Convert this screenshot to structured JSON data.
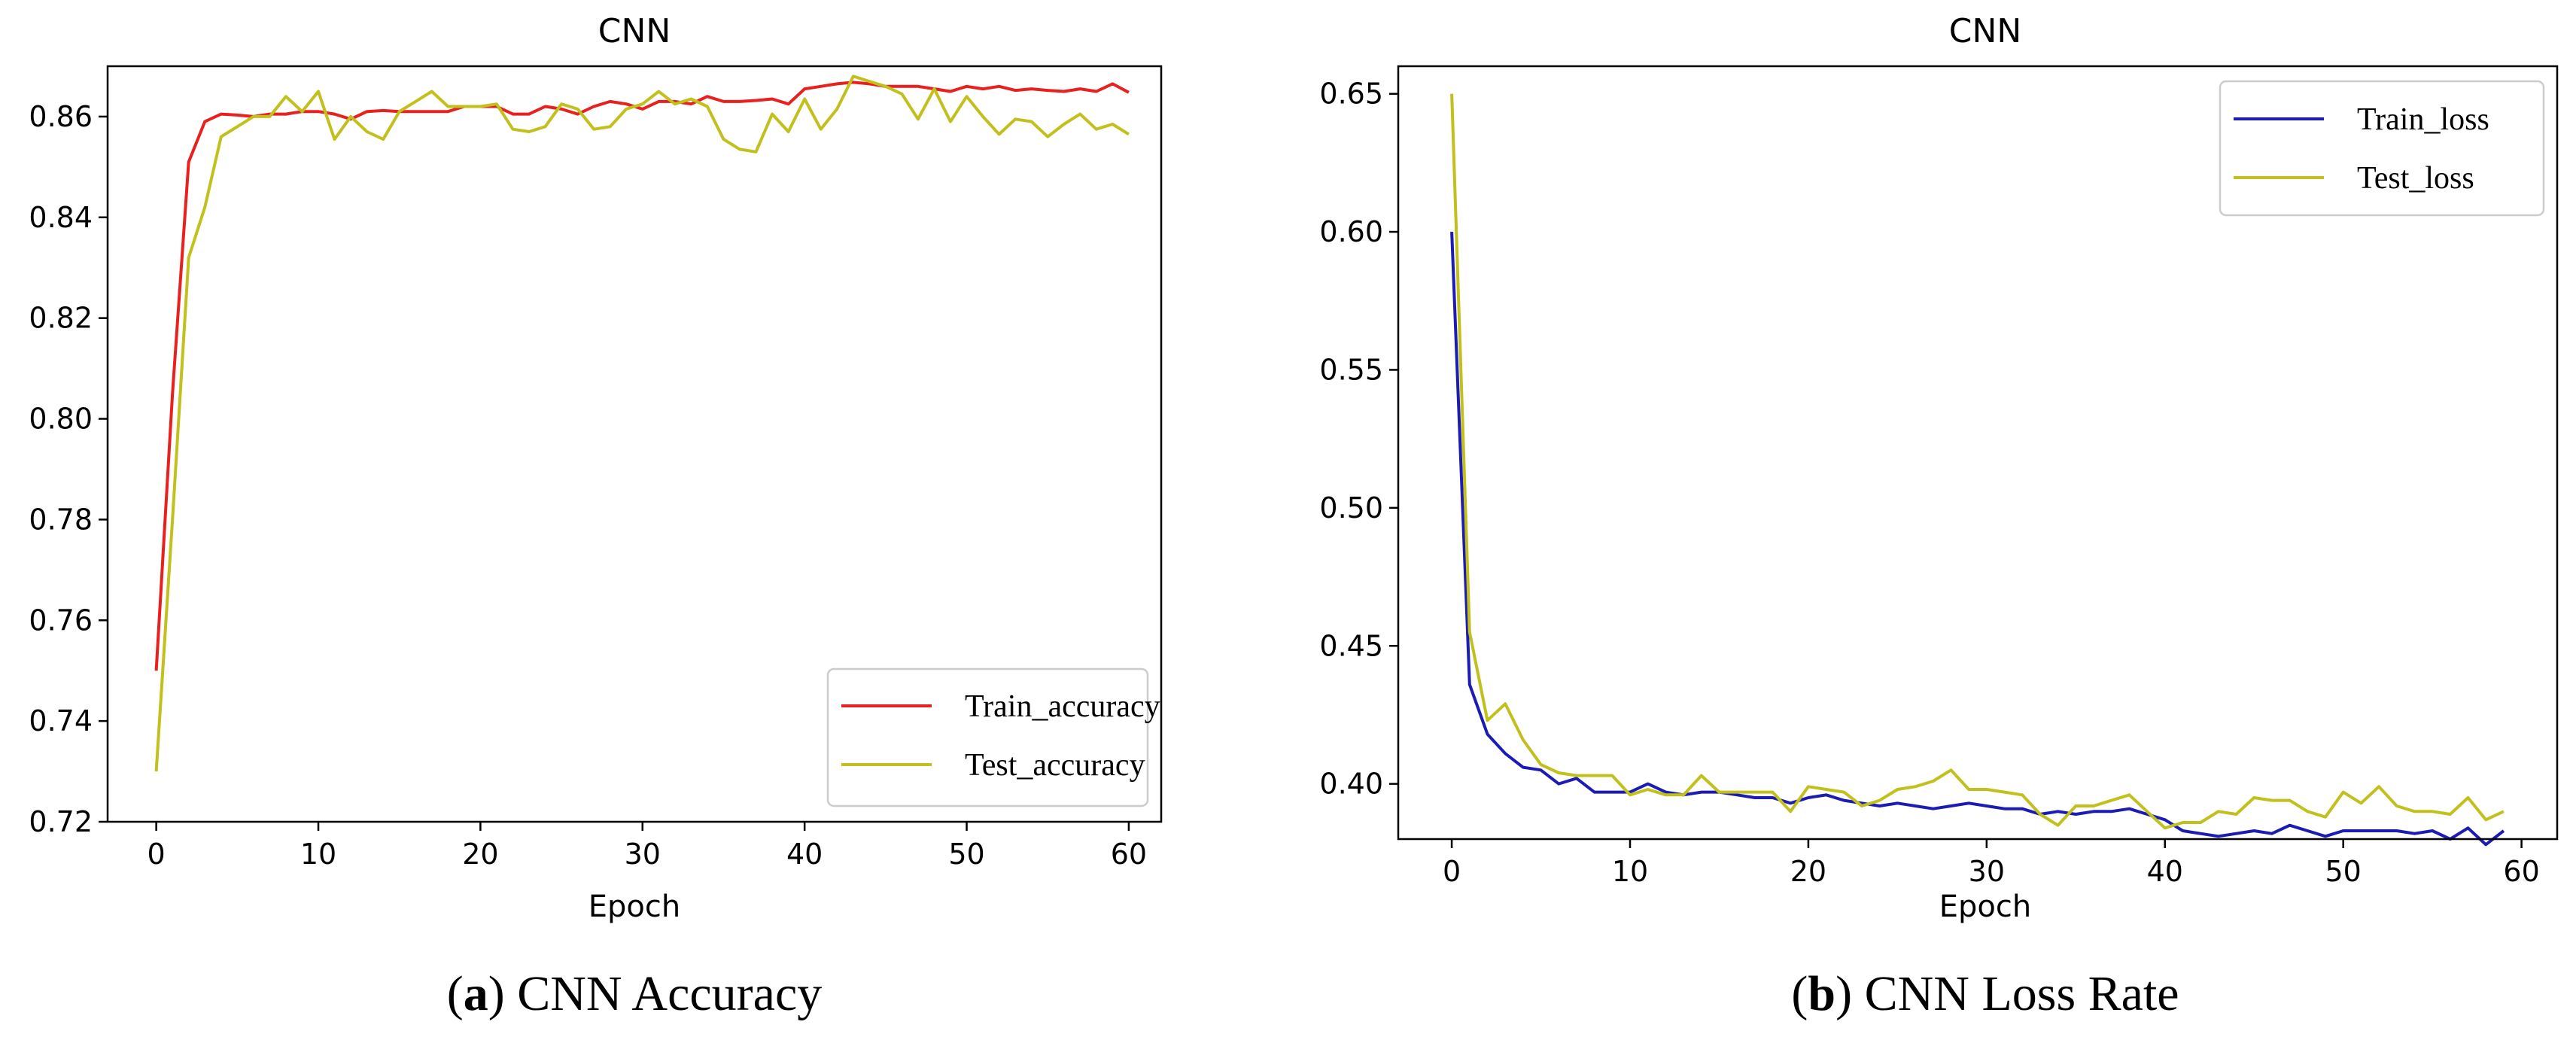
{
  "captions": {
    "a": {
      "letter": "a",
      "text": " CNN Accuracy"
    },
    "b": {
      "letter": "b",
      "text": " CNN Loss Rate"
    }
  },
  "chart_data": [
    {
      "type": "line",
      "title": "CNN",
      "xlabel": "Epoch",
      "ylabel": "",
      "xlim": [
        -3,
        62
      ],
      "ylim": [
        0.72,
        0.87
      ],
      "xticks": [
        0,
        10,
        20,
        30,
        40,
        50,
        60
      ],
      "yticks": [
        0.72,
        0.74,
        0.76,
        0.78,
        0.8,
        0.82,
        0.84,
        0.86
      ],
      "ytick_labels": [
        "0.72",
        "0.74",
        "0.76",
        "0.78",
        "0.80",
        "0.82",
        "0.84",
        "0.86"
      ],
      "legend_position": "lower-right",
      "grid": false,
      "series": [
        {
          "name": "Train_accuracy",
          "color": "#e8201e",
          "x": [
            0,
            1,
            2,
            3,
            4,
            5,
            6,
            7,
            8,
            9,
            10,
            11,
            12,
            13,
            14,
            15,
            16,
            17,
            18,
            19,
            20,
            21,
            22,
            23,
            24,
            25,
            26,
            27,
            28,
            29,
            30,
            31,
            32,
            33,
            34,
            35,
            36,
            37,
            38,
            39,
            40,
            41,
            42,
            43,
            44,
            45,
            46,
            47,
            48,
            49,
            50,
            51,
            52,
            53,
            54,
            55,
            56,
            57,
            58,
            59,
            60
          ],
          "values": [
            0.75,
            0.805,
            0.851,
            0.859,
            0.8605,
            0.8603,
            0.86,
            0.8605,
            0.8605,
            0.861,
            0.861,
            0.8605,
            0.8595,
            0.861,
            0.8612,
            0.861,
            0.861,
            0.861,
            0.861,
            0.862,
            0.862,
            0.862,
            0.8605,
            0.8605,
            0.862,
            0.8615,
            0.8605,
            0.862,
            0.863,
            0.8625,
            0.8615,
            0.863,
            0.863,
            0.8625,
            0.864,
            0.863,
            0.863,
            0.8632,
            0.8635,
            0.8625,
            0.8655,
            0.866,
            0.8665,
            0.8668,
            0.8665,
            0.866,
            0.866,
            0.866,
            0.8655,
            0.865,
            0.866,
            0.8655,
            0.866,
            0.8652,
            0.8655,
            0.8652,
            0.865,
            0.8655,
            0.865,
            0.8665,
            0.8648
          ]
        },
        {
          "name": "Test_accuracy",
          "color": "#c2c01c",
          "x": [
            0,
            1,
            2,
            3,
            4,
            5,
            6,
            7,
            8,
            9,
            10,
            11,
            12,
            13,
            14,
            15,
            16,
            17,
            18,
            19,
            20,
            21,
            22,
            23,
            24,
            25,
            26,
            27,
            28,
            29,
            30,
            31,
            32,
            33,
            34,
            35,
            36,
            37,
            38,
            39,
            40,
            41,
            42,
            43,
            44,
            45,
            46,
            47,
            48,
            49,
            50,
            51,
            52,
            53,
            54,
            55,
            56,
            57,
            58,
            59,
            60
          ],
          "values": [
            0.73,
            0.78,
            0.832,
            0.842,
            0.856,
            0.858,
            0.86,
            0.86,
            0.864,
            0.861,
            0.865,
            0.8555,
            0.86,
            0.857,
            0.8555,
            0.861,
            0.863,
            0.865,
            0.862,
            0.862,
            0.862,
            0.8625,
            0.8575,
            0.857,
            0.858,
            0.8625,
            0.8615,
            0.8575,
            0.858,
            0.8615,
            0.8625,
            0.865,
            0.8625,
            0.8635,
            0.862,
            0.8555,
            0.8535,
            0.853,
            0.8605,
            0.857,
            0.8635,
            0.8575,
            0.8615,
            0.868,
            0.867,
            0.866,
            0.8645,
            0.8595,
            0.8655,
            0.859,
            0.864,
            0.86,
            0.8565,
            0.8595,
            0.859,
            0.856,
            0.8585,
            0.8605,
            0.8575,
            0.8585,
            0.8565
          ]
        }
      ]
    },
    {
      "type": "line",
      "title": "CNN",
      "xlabel": "Epoch",
      "ylabel": "",
      "xlim": [
        -3,
        62
      ],
      "ylim": [
        0.38,
        0.66
      ],
      "xticks": [
        0,
        10,
        20,
        30,
        40,
        50,
        60
      ],
      "yticks": [
        0.4,
        0.45,
        0.5,
        0.55,
        0.6,
        0.65
      ],
      "ytick_labels": [
        "0.40",
        "0.45",
        "0.50",
        "0.55",
        "0.60",
        "0.65"
      ],
      "legend_position": "upper-right",
      "grid": false,
      "series": [
        {
          "name": "Train_loss",
          "color": "#1c1cb4",
          "x": [
            0,
            1,
            2,
            3,
            4,
            5,
            6,
            7,
            8,
            9,
            10,
            11,
            12,
            13,
            14,
            15,
            16,
            17,
            18,
            19,
            20,
            21,
            22,
            23,
            24,
            25,
            26,
            27,
            28,
            29,
            30,
            31,
            32,
            33,
            34,
            35,
            36,
            37,
            38,
            39,
            40,
            41,
            42,
            43,
            44,
            45,
            46,
            47,
            48,
            49,
            50,
            51,
            52,
            53,
            54,
            55,
            56,
            57,
            58,
            59
          ],
          "values": [
            0.6,
            0.436,
            0.418,
            0.411,
            0.406,
            0.405,
            0.4,
            0.402,
            0.397,
            0.397,
            0.397,
            0.4,
            0.397,
            0.396,
            0.397,
            0.397,
            0.396,
            0.395,
            0.395,
            0.393,
            0.395,
            0.396,
            0.394,
            0.393,
            0.392,
            0.393,
            0.392,
            0.391,
            0.392,
            0.393,
            0.392,
            0.391,
            0.391,
            0.389,
            0.39,
            0.389,
            0.39,
            0.39,
            0.391,
            0.389,
            0.387,
            0.383,
            0.382,
            0.381,
            0.382,
            0.383,
            0.382,
            0.385,
            0.383,
            0.381,
            0.383,
            0.383,
            0.383,
            0.383,
            0.382,
            0.383,
            0.38,
            0.384,
            0.378,
            0.383
          ]
        },
        {
          "name": "Test_loss",
          "color": "#c2c01c",
          "x": [
            0,
            1,
            2,
            3,
            4,
            5,
            6,
            7,
            8,
            9,
            10,
            11,
            12,
            13,
            14,
            15,
            16,
            17,
            18,
            19,
            20,
            21,
            22,
            23,
            24,
            25,
            26,
            27,
            28,
            29,
            30,
            31,
            32,
            33,
            34,
            35,
            36,
            37,
            38,
            39,
            40,
            41,
            42,
            43,
            44,
            45,
            46,
            47,
            48,
            49,
            50,
            51,
            52,
            53,
            54,
            55,
            56,
            57,
            58,
            59
          ],
          "values": [
            0.65,
            0.455,
            0.423,
            0.429,
            0.416,
            0.407,
            0.404,
            0.403,
            0.403,
            0.403,
            0.396,
            0.398,
            0.396,
            0.396,
            0.403,
            0.397,
            0.397,
            0.397,
            0.397,
            0.39,
            0.399,
            0.398,
            0.397,
            0.392,
            0.394,
            0.398,
            0.399,
            0.401,
            0.405,
            0.398,
            0.398,
            0.397,
            0.396,
            0.389,
            0.385,
            0.392,
            0.392,
            0.394,
            0.396,
            0.39,
            0.384,
            0.386,
            0.386,
            0.39,
            0.389,
            0.395,
            0.394,
            0.394,
            0.39,
            0.388,
            0.397,
            0.393,
            0.399,
            0.392,
            0.39,
            0.39,
            0.389,
            0.395,
            0.387,
            0.39
          ]
        }
      ]
    }
  ]
}
